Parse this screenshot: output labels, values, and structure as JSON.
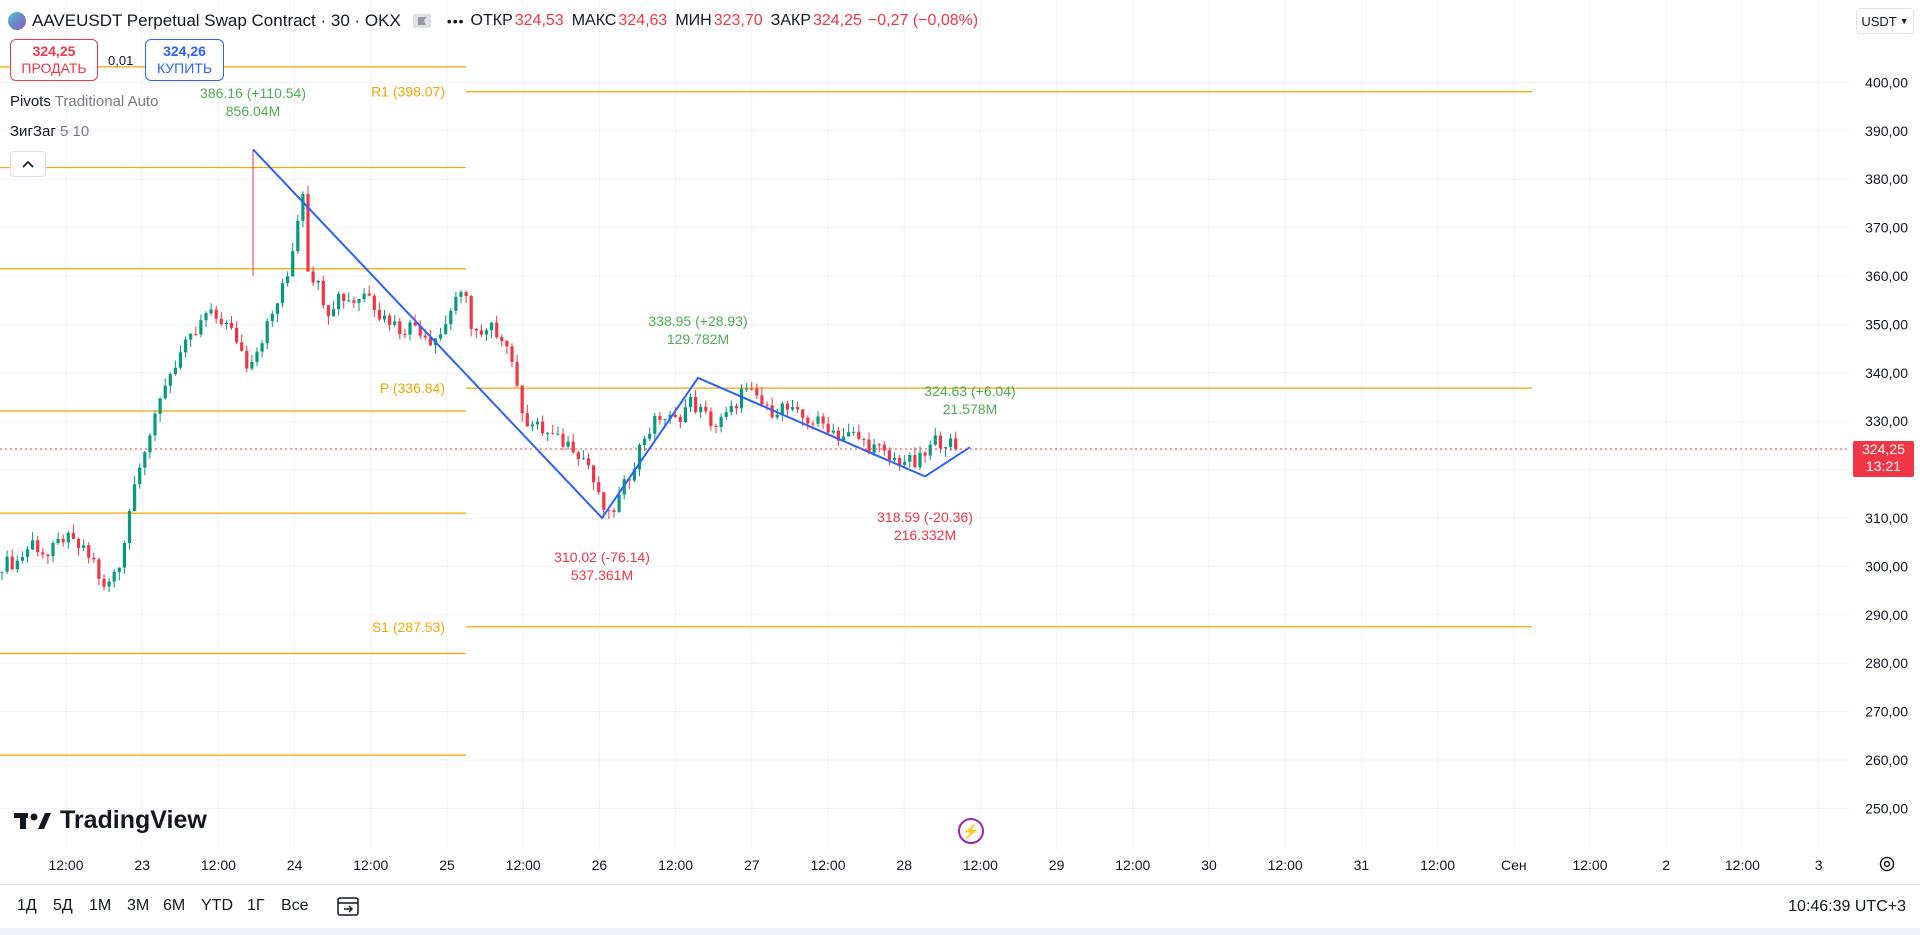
{
  "header": {
    "title": "AAVEUSDT Perpetual Swap Contract · 30 · OKX",
    "open_label": "ОТКР",
    "open_value": "324,53",
    "high_label": "МАКС",
    "high_value": "324,63",
    "low_label": "МИН",
    "low_value": "323,70",
    "close_label": "ЗАКР",
    "close_value": "324,25",
    "change": "−0,27 (−0,08%)",
    "more_icon": "more-dots-icon",
    "flag_icon": "flag-icon"
  },
  "trade": {
    "sell_price": "324,25",
    "sell_label": "ПРОДАТЬ",
    "spread": "0,01",
    "buy_price": "324,26",
    "buy_label": "КУПИТЬ"
  },
  "indicators": {
    "pivots_name": "Pivots",
    "pivots_args": "Traditional Auto",
    "zigzag_name": "ЗигЗаг",
    "zigzag_args": "5 10"
  },
  "currency": "USDT",
  "current_price": {
    "price": "324,25",
    "countdown": "13:21"
  },
  "timeframes": [
    "1Д",
    "5Д",
    "1М",
    "3М",
    "6М",
    "YTD",
    "1Г",
    "Все"
  ],
  "clock": "10:46:39 UTC+3",
  "logo_text": "TradingView",
  "colors": {
    "up": "#089981",
    "down": "#f23645",
    "zigzag": "#2962ff",
    "pivot": "#f7a600",
    "up_label": "#4caf50"
  },
  "chart_data": {
    "type": "candlestick",
    "y_axis": {
      "min": 245,
      "max": 405,
      "ticks": [
        "250,00",
        "260,00",
        "270,00",
        "280,00",
        "290,00",
        "300,00",
        "310,00",
        "320,00",
        "330,00",
        "340,00",
        "350,00",
        "360,00",
        "370,00",
        "380,00",
        "390,00",
        "400,00"
      ]
    },
    "x_axis": {
      "ticks": [
        "12:00",
        "23",
        "12:00",
        "24",
        "12:00",
        "25",
        "12:00",
        "26",
        "12:00",
        "27",
        "12:00",
        "28",
        "12:00",
        "29",
        "12:00",
        "30",
        "12:00",
        "31",
        "12:00",
        "Сен",
        "12:00",
        "2",
        "12:00",
        "3"
      ]
    },
    "pivot_levels": [
      {
        "label": "R1 (398.07)",
        "value": 398.07,
        "period": "current"
      },
      {
        "label": "P (336.84)",
        "value": 336.84,
        "period": "current"
      },
      {
        "label": "S1 (287.53)",
        "value": 287.53,
        "period": "current"
      },
      {
        "value": 403.2,
        "period": "previous"
      },
      {
        "value": 382.4,
        "period": "previous"
      },
      {
        "value": 361.5,
        "period": "previous"
      },
      {
        "value": 332.1,
        "period": "previous"
      },
      {
        "value": 311.0,
        "period": "previous"
      },
      {
        "value": 282.0,
        "period": "previous"
      },
      {
        "value": 261.0,
        "period": "previous"
      }
    ],
    "zigzag_points": [
      386.16,
      310.02,
      338.95,
      318.59,
      324.63
    ],
    "zigzag_labels": [
      {
        "price": "386.16 (+110.54)",
        "volume": "856.04M",
        "direction": "up"
      },
      {
        "price": "310.02 (-76.14)",
        "volume": "537.361M",
        "direction": "down"
      },
      {
        "price": "338.95 (+28.93)",
        "volume": "129.782M",
        "direction": "up"
      },
      {
        "price": "318.59 (-20.36)",
        "volume": "216.332M",
        "direction": "down"
      },
      {
        "price": "324.63 (+6.04)",
        "volume": "21.578M",
        "direction": "up"
      }
    ],
    "price_path": [
      [
        0,
        300.5
      ],
      [
        3,
        301
      ],
      [
        6,
        305
      ],
      [
        9,
        302
      ],
      [
        12,
        306
      ],
      [
        15,
        304
      ],
      [
        18,
        301
      ],
      [
        20,
        295
      ],
      [
        23,
        300
      ],
      [
        25,
        312
      ],
      [
        27,
        322
      ],
      [
        30,
        330
      ],
      [
        32,
        338
      ],
      [
        35,
        344
      ],
      [
        38,
        348
      ],
      [
        40,
        352
      ],
      [
        43,
        351
      ],
      [
        46,
        347
      ],
      [
        48,
        342
      ],
      [
        50,
        345
      ],
      [
        53,
        352
      ],
      [
        56,
        360
      ],
      [
        58,
        372
      ],
      [
        59,
        378
      ],
      [
        60,
        362
      ],
      [
        62,
        358
      ],
      [
        64,
        353
      ],
      [
        66,
        356
      ],
      [
        69,
        355
      ],
      [
        72,
        357
      ],
      [
        74,
        352
      ],
      [
        76,
        351
      ],
      [
        78,
        349
      ],
      [
        81,
        350
      ],
      [
        84,
        347
      ],
      [
        86,
        348
      ],
      [
        88,
        353
      ],
      [
        91,
        357
      ],
      [
        92,
        349
      ],
      [
        94,
        347
      ],
      [
        96,
        349
      ],
      [
        98,
        348
      ],
      [
        100,
        343
      ],
      [
        101,
        336
      ],
      [
        103,
        330
      ],
      [
        106,
        328
      ],
      [
        109,
        326
      ],
      [
        112,
        325
      ],
      [
        115,
        321
      ],
      [
        117,
        314
      ],
      [
        119,
        310
      ],
      [
        121,
        314
      ],
      [
        123,
        319
      ],
      [
        126,
        327
      ],
      [
        129,
        331
      ],
      [
        132,
        330
      ],
      [
        135,
        334
      ],
      [
        138,
        331
      ],
      [
        140,
        329
      ],
      [
        143,
        332
      ],
      [
        145,
        336
      ],
      [
        148,
        335
      ],
      [
        150,
        332
      ],
      [
        153,
        333
      ],
      [
        156,
        331
      ],
      [
        159,
        330
      ],
      [
        162,
        329
      ],
      [
        164,
        327
      ],
      [
        167,
        327
      ],
      [
        170,
        325
      ],
      [
        172,
        324
      ],
      [
        174,
        322
      ],
      [
        177,
        322
      ],
      [
        179,
        321
      ],
      [
        181,
        323
      ],
      [
        183,
        326
      ],
      [
        185,
        326
      ],
      [
        187,
        324.3
      ]
    ]
  }
}
